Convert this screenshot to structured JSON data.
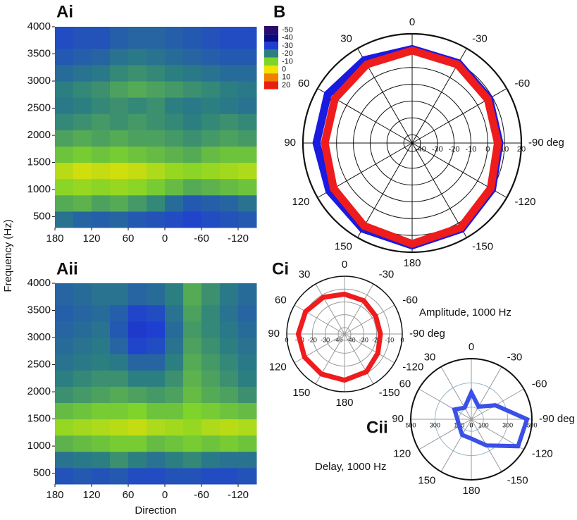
{
  "chart_data": [
    {
      "type": "heatmap",
      "panel": "Ai",
      "ylabel": "Frequency (Hz)",
      "x_bins": [
        180,
        150,
        120,
        90,
        60,
        30,
        0,
        -30,
        -60,
        -90,
        -120,
        -150
      ],
      "y_bins": [
        300,
        600,
        900,
        1200,
        1500,
        1800,
        2100,
        2400,
        2700,
        3000,
        3300,
        3600,
        4000
      ],
      "xlim": [
        180,
        -150
      ],
      "ylim": [
        300,
        4000
      ],
      "xticks": [
        180,
        120,
        60,
        0,
        -60,
        -120
      ],
      "yticks": [
        500,
        1000,
        1500,
        2000,
        2500,
        3000,
        3500,
        4000
      ],
      "values": [
        [
          -22,
          -24,
          -25,
          -24,
          -26,
          -27,
          -28,
          -29,
          -28,
          -27,
          -26
        ],
        [
          -15,
          -14,
          -16,
          -15,
          -17,
          -19,
          -23,
          -26,
          -25,
          -24,
          -22
        ],
        [
          -9,
          -8,
          -9,
          -8,
          -9,
          -11,
          -13,
          -15,
          -14,
          -13,
          -12
        ],
        [
          -5,
          -3,
          -4,
          -3,
          -4,
          -6,
          -8,
          -9,
          -8,
          -7,
          -6
        ],
        [
          -12,
          -11,
          -12,
          -11,
          -12,
          -13,
          -14,
          -15,
          -13,
          -12,
          -12
        ],
        [
          -16,
          -15,
          -16,
          -15,
          -16,
          -16,
          -17,
          -18,
          -17,
          -16,
          -17
        ],
        [
          -19,
          -18,
          -17,
          -18,
          -17,
          -18,
          -19,
          -20,
          -19,
          -18,
          -19
        ],
        [
          -21,
          -20,
          -19,
          -18,
          -19,
          -18,
          -20,
          -21,
          -20,
          -21,
          -22
        ],
        [
          -20,
          -19,
          -18,
          -16,
          -15,
          -16,
          -17,
          -18,
          -19,
          -20,
          -21
        ],
        [
          -23,
          -22,
          -21,
          -19,
          -18,
          -19,
          -20,
          -21,
          -22,
          -23,
          -23
        ],
        [
          -26,
          -25,
          -24,
          -22,
          -21,
          -22,
          -23,
          -24,
          -25,
          -26,
          -26
        ],
        [
          -28,
          -27,
          -27,
          -25,
          -24,
          -24,
          -25,
          -26,
          -27,
          -28,
          -28
        ]
      ],
      "colorbar": {
        "ticks": [
          -50,
          -40,
          -30,
          -20,
          -10,
          0,
          10,
          20
        ],
        "colors": [
          "#2c0b6e",
          "#0b0b80",
          "#1f3fd2",
          "#2b7f80",
          "#7fd42b",
          "#f2e200",
          "#f08000",
          "#e82010"
        ]
      }
    },
    {
      "type": "heatmap",
      "panel": "Aii",
      "xlabel": "Direction",
      "x_bins": [
        180,
        150,
        120,
        90,
        60,
        30,
        0,
        -30,
        -60,
        -90,
        -120,
        -150
      ],
      "y_bins": [
        300,
        600,
        900,
        1200,
        1500,
        1800,
        2100,
        2400,
        2700,
        3000,
        3300,
        3600,
        4000
      ],
      "xlim": [
        180,
        -150
      ],
      "ylim": [
        300,
        4000
      ],
      "xticks": [
        180,
        120,
        60,
        0,
        -60,
        -120
      ],
      "yticks": [
        500,
        1000,
        1500,
        2000,
        2500,
        3000,
        3500,
        4000
      ],
      "values": [
        [
          -27,
          -26,
          -27,
          -26,
          -28,
          -28,
          -27,
          -27,
          -28,
          -28,
          -27
        ],
        [
          -22,
          -21,
          -20,
          -18,
          -20,
          -22,
          -20,
          -19,
          -21,
          -22,
          -22
        ],
        [
          -14,
          -13,
          -12,
          -11,
          -11,
          -13,
          -12,
          -11,
          -12,
          -11,
          -12
        ],
        [
          -8,
          -7,
          -6,
          -5,
          -4,
          -6,
          -7,
          -8,
          -6,
          -5,
          -6
        ],
        [
          -13,
          -12,
          -11,
          -11,
          -10,
          -12,
          -12,
          -10,
          -11,
          -12,
          -13
        ],
        [
          -18,
          -17,
          -16,
          -15,
          -16,
          -17,
          -16,
          -13,
          -15,
          -16,
          -18
        ],
        [
          -20,
          -19,
          -18,
          -18,
          -20,
          -20,
          -18,
          -14,
          -16,
          -18,
          -20
        ],
        [
          -22,
          -21,
          -20,
          -21,
          -24,
          -24,
          -20,
          -15,
          -17,
          -19,
          -21
        ],
        [
          -23,
          -22,
          -21,
          -24,
          -29,
          -28,
          -22,
          -16,
          -18,
          -20,
          -22
        ],
        [
          -24,
          -23,
          -22,
          -26,
          -31,
          -30,
          -23,
          -17,
          -19,
          -21,
          -23
        ],
        [
          -25,
          -24,
          -23,
          -25,
          -29,
          -28,
          -22,
          -16,
          -19,
          -22,
          -24
        ],
        [
          -24,
          -23,
          -22,
          -22,
          -24,
          -23,
          -20,
          -15,
          -18,
          -21,
          -23
        ]
      ]
    },
    {
      "type": "polar",
      "panel": "B",
      "thetaticks": [
        0,
        -30,
        -60,
        {
          "value": -90,
          "label": "-90 deg"
        },
        -120,
        -150,
        180,
        150,
        120,
        90,
        60,
        30
      ],
      "rlim": [
        -45,
        20
      ],
      "rticks": [
        -40,
        -30,
        -20,
        -10,
        0,
        10,
        20
      ],
      "theta": [
        0,
        -30,
        -60,
        -90,
        -120,
        -150,
        180,
        150,
        120,
        90,
        60,
        30
      ],
      "series": [
        {
          "color": "#1a1ae0",
          "values": [
            11,
            10,
            8,
            7,
            10,
            14,
            16,
            14,
            12,
            12,
            13,
            12
          ]
        },
        {
          "color": "#ee1c1c",
          "values": [
            10,
            9,
            7,
            6,
            9,
            13,
            15,
            12,
            9,
            7,
            8,
            9
          ]
        }
      ]
    },
    {
      "type": "polar",
      "panel": "Ci",
      "annotation": "Amplitude, 1000 Hz",
      "thetaticks": [
        0,
        -30,
        -60,
        {
          "value": -90,
          "label": "-90 deg"
        },
        -120,
        -150,
        180,
        150,
        120,
        90,
        60,
        30
      ],
      "rlim": [
        -45,
        0
      ],
      "rticks": [
        -40,
        -30,
        -20,
        -10,
        0
      ],
      "theta": [
        0,
        -30,
        -60,
        -90,
        -120,
        -150,
        180,
        150,
        120,
        90,
        60,
        30
      ],
      "series": [
        {
          "color": "#ee1c1c",
          "values": [
            -14,
            -15,
            -17,
            -17,
            -15,
            -11,
            -9,
            -9,
            -9,
            -9,
            -10,
            -12
          ]
        }
      ]
    },
    {
      "type": "polar",
      "panel": "Cii",
      "annotation": "Delay, 1000 Hz",
      "thetaticks": [
        0,
        -30,
        -60,
        {
          "value": -90,
          "label": "-90 deg"
        },
        -120,
        -150,
        180,
        150,
        120,
        90,
        60,
        30
      ],
      "rlim": [
        0,
        500
      ],
      "rticks": [
        0,
        100,
        300,
        500
      ],
      "theta": [
        0,
        -30,
        -60,
        -90,
        -120,
        -150,
        180,
        150,
        120,
        90,
        60,
        30
      ],
      "series": [
        {
          "color": "#3a50e6",
          "values": [
            220,
            120,
            230,
            460,
            445,
            250,
            160,
            150,
            115,
            115,
            160,
            110
          ]
        }
      ]
    }
  ]
}
